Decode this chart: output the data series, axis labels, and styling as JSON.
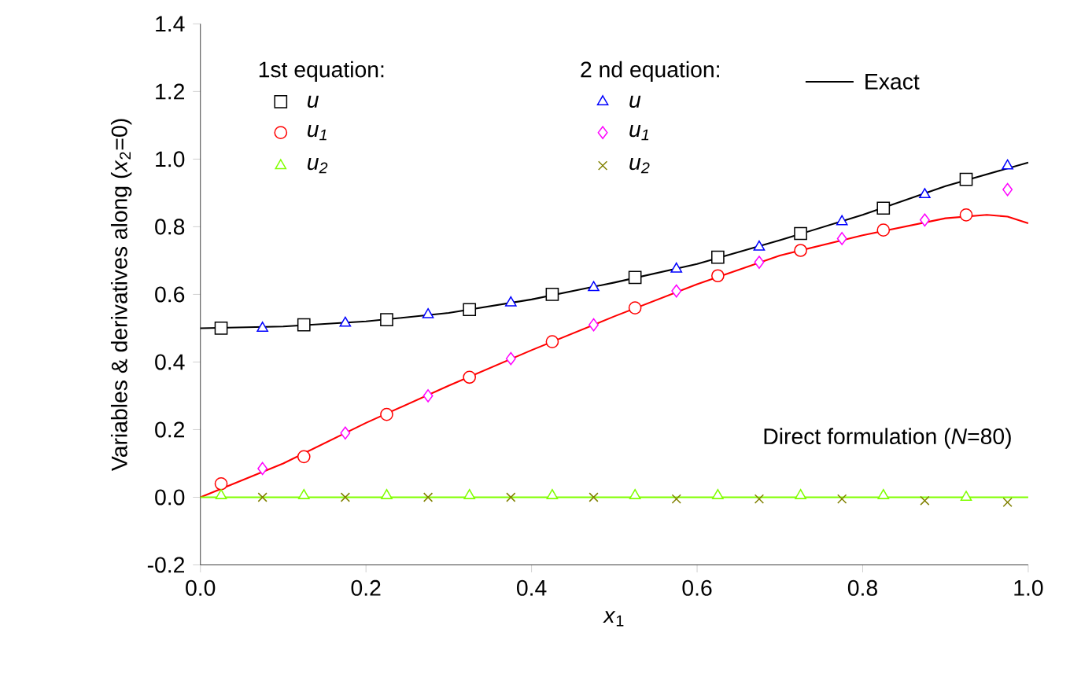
{
  "chart_data": {
    "type": "scatter",
    "xlabel": "*x*$_{1}$",
    "ylabel": "Variables & derivatives along (*x*$_{2}$=0)",
    "xlim": [
      0,
      1
    ],
    "ylim": [
      -0.2,
      1.4
    ],
    "xticks": [
      {
        "value": 0,
        "label": "0.0"
      },
      0.2,
      0.4,
      0.6,
      0.8,
      {
        "value": 1,
        "label": "1.0"
      }
    ],
    "yticks": [
      -0.2,
      {
        "value": 0,
        "label": "0.0"
      },
      0.2,
      0.4,
      0.6,
      0.8,
      {
        "value": 1,
        "label": "1.0"
      },
      1.2,
      1.4
    ],
    "legend": "top",
    "annotations": [
      "1st equation:",
      "2 nd equation:",
      "Direct formulation (*N*=80)"
    ],
    "series": [
      {
        "name": "u",
        "color": "#000000",
        "marker": "square",
        "x": [
          0.025,
          0.125,
          0.225,
          0.325,
          0.425,
          0.525,
          0.625,
          0.725,
          0.825,
          0.925
        ],
        "values": [
          0.5,
          0.51,
          0.525,
          0.555,
          0.6,
          0.65,
          0.71,
          0.78,
          0.855,
          0.94
        ]
      },
      {
        "name": "u$_{1}$",
        "color": "#ff0000",
        "marker": "circle",
        "x": [
          0.025,
          0.125,
          0.225,
          0.325,
          0.425,
          0.525,
          0.625,
          0.725,
          0.825,
          0.925
        ],
        "values": [
          0.04,
          0.12,
          0.245,
          0.355,
          0.46,
          0.56,
          0.655,
          0.73,
          0.79,
          0.835
        ]
      },
      {
        "name": "u$_{2}$",
        "color": "#80ff00",
        "marker": "triangle",
        "x": [
          0.025,
          0.125,
          0.225,
          0.325,
          0.425,
          0.525,
          0.625,
          0.725,
          0.825,
          0.925
        ],
        "values": [
          0.005,
          0.005,
          0.005,
          0.005,
          0.005,
          0.005,
          0.005,
          0.005,
          0.005,
          0.0
        ]
      },
      {
        "name": "u",
        "color": "#0000ff",
        "marker": "triangle-down",
        "x": [
          0.075,
          0.175,
          0.275,
          0.375,
          0.475,
          0.575,
          0.675,
          0.775,
          0.875,
          0.975
        ],
        "values": [
          0.5,
          0.515,
          0.54,
          0.575,
          0.62,
          0.675,
          0.74,
          0.815,
          0.895,
          0.98
        ]
      },
      {
        "name": "u$_{1}$",
        "color": "#ff00ff",
        "marker": "diamond",
        "x": [
          0.075,
          0.175,
          0.275,
          0.375,
          0.475,
          0.575,
          0.675,
          0.775,
          0.875,
          0.975
        ],
        "values": [
          0.085,
          0.19,
          0.3,
          0.41,
          0.51,
          0.61,
          0.695,
          0.765,
          0.82,
          0.91
        ]
      },
      {
        "name": "u$_{2}$",
        "color": "#808000",
        "marker": "cross",
        "x": [
          0.075,
          0.175,
          0.275,
          0.375,
          0.475,
          0.575,
          0.675,
          0.775,
          0.875,
          0.975
        ],
        "values": [
          0.0,
          0.0,
          0.0,
          0.0,
          0.0,
          -0.005,
          -0.005,
          -0.005,
          -0.01,
          -0.015
        ]
      },
      {
        "name": "Exact",
        "type": "line",
        "color": "#000000",
        "marker": "none",
        "x": [
          0,
          0.1,
          0.2,
          0.3,
          0.4,
          0.5,
          0.6,
          0.7,
          0.8,
          0.9,
          1.0
        ],
        "values": [
          0.5,
          0.505,
          0.52,
          0.545,
          0.585,
          0.635,
          0.69,
          0.76,
          0.835,
          0.92,
          0.99
        ]
      },
      {
        "type": "line",
        "color": "#ff0000",
        "marker": "none",
        "x": [
          0,
          0.1,
          0.2,
          0.3,
          0.4,
          0.5,
          0.6,
          0.7,
          0.8,
          0.9,
          0.95,
          0.975,
          1.0
        ],
        "values": [
          0.0,
          0.1,
          0.22,
          0.33,
          0.435,
          0.535,
          0.63,
          0.715,
          0.775,
          0.825,
          0.835,
          0.83,
          0.81
        ]
      },
      {
        "type": "line",
        "color": "#80ff00",
        "marker": "none",
        "x": [
          0,
          1.0
        ],
        "values": [
          0.0,
          0.0
        ]
      }
    ]
  }
}
